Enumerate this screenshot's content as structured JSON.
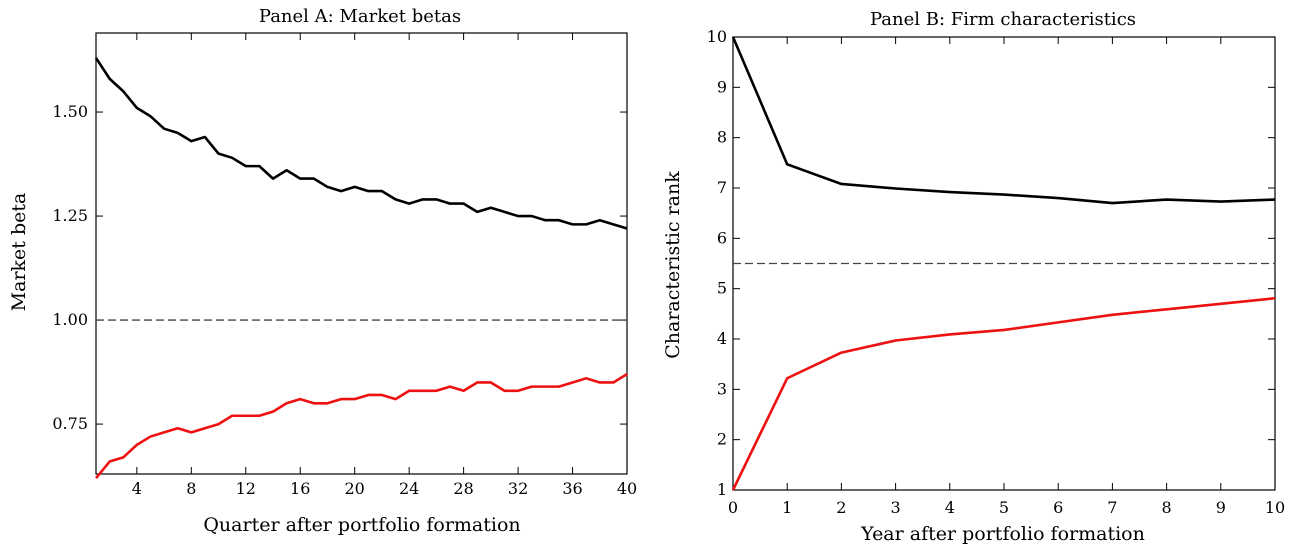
{
  "chart_data": [
    {
      "type": "line",
      "title": "Panel A: Market betas",
      "xlabel": "Quarter after portfolio formation",
      "ylabel": "Market beta",
      "xlim": [
        1,
        40
      ],
      "ylim": [
        0.63,
        1.69
      ],
      "x_ticks": [
        4,
        8,
        12,
        16,
        20,
        24,
        28,
        32,
        36,
        40
      ],
      "x_tick_labels": [
        "4",
        "8",
        "12",
        "16",
        "20",
        "24",
        "28",
        "32",
        "36",
        "40"
      ],
      "y_ticks": [
        0.75,
        1.0,
        1.25,
        1.5
      ],
      "y_tick_labels": [
        "0.75",
        "1.00",
        "1.25",
        "1.50"
      ],
      "grid": false,
      "reference_line": {
        "y": 1.0,
        "color": "#444444",
        "style": "dashed"
      },
      "series": [
        {
          "color": "#000000",
          "x": [
            1,
            2,
            3,
            4,
            5,
            6,
            7,
            8,
            9,
            10,
            11,
            12,
            13,
            14,
            15,
            16,
            17,
            18,
            19,
            20,
            21,
            22,
            23,
            24,
            25,
            26,
            27,
            28,
            29,
            30,
            31,
            32,
            33,
            34,
            35,
            36,
            37,
            38,
            39,
            40
          ],
          "values": [
            1.63,
            1.58,
            1.55,
            1.51,
            1.49,
            1.46,
            1.45,
            1.43,
            1.44,
            1.4,
            1.39,
            1.37,
            1.37,
            1.34,
            1.36,
            1.34,
            1.34,
            1.32,
            1.31,
            1.32,
            1.31,
            1.31,
            1.29,
            1.28,
            1.29,
            1.29,
            1.28,
            1.28,
            1.26,
            1.27,
            1.26,
            1.25,
            1.25,
            1.24,
            1.24,
            1.23,
            1.23,
            1.24,
            1.23,
            1.22
          ]
        },
        {
          "color": "#ee1111",
          "x": [
            1,
            2,
            3,
            4,
            5,
            6,
            7,
            8,
            9,
            10,
            11,
            12,
            13,
            14,
            15,
            16,
            17,
            18,
            19,
            20,
            21,
            22,
            23,
            24,
            25,
            26,
            27,
            28,
            29,
            30,
            31,
            32,
            33,
            34,
            35,
            36,
            37,
            38,
            39,
            40
          ],
          "values": [
            0.62,
            0.66,
            0.67,
            0.7,
            0.72,
            0.73,
            0.74,
            0.73,
            0.74,
            0.75,
            0.77,
            0.77,
            0.77,
            0.78,
            0.8,
            0.81,
            0.8,
            0.8,
            0.81,
            0.81,
            0.82,
            0.82,
            0.81,
            0.83,
            0.83,
            0.83,
            0.84,
            0.83,
            0.85,
            0.85,
            0.83,
            0.83,
            0.84,
            0.84,
            0.84,
            0.85,
            0.86,
            0.85,
            0.85,
            0.87
          ]
        }
      ]
    },
    {
      "type": "line",
      "title": "Panel B: Firm characteristics",
      "xlabel": "Year after portfolio formation",
      "ylabel": "Characteristic rank",
      "xlim": [
        0,
        10
      ],
      "ylim": [
        1,
        10
      ],
      "x_ticks": [
        0,
        1,
        2,
        3,
        4,
        5,
        6,
        7,
        8,
        9,
        10
      ],
      "x_tick_labels": [
        "0",
        "1",
        "2",
        "3",
        "4",
        "5",
        "6",
        "7",
        "8",
        "9",
        "10"
      ],
      "y_ticks": [
        1,
        2,
        3,
        4,
        5,
        6,
        7,
        8,
        9,
        10
      ],
      "y_tick_labels": [
        "1",
        "2",
        "3",
        "4",
        "5",
        "6",
        "7",
        "8",
        "9",
        "10"
      ],
      "grid": false,
      "reference_line": {
        "y": 5.5,
        "color": "#444444",
        "style": "dashed"
      },
      "series": [
        {
          "color": "#000000",
          "x": [
            0,
            1,
            2,
            3,
            4,
            5,
            6,
            7,
            8,
            9,
            10
          ],
          "values": [
            10.0,
            7.47,
            7.08,
            6.99,
            6.92,
            6.87,
            6.8,
            6.7,
            6.77,
            6.73,
            6.77
          ]
        },
        {
          "color": "#ee1111",
          "x": [
            0,
            1,
            2,
            3,
            4,
            5,
            6,
            7,
            8,
            9,
            10
          ],
          "values": [
            1.0,
            3.22,
            3.73,
            3.97,
            4.09,
            4.18,
            4.33,
            4.48,
            4.59,
            4.7,
            4.81
          ]
        }
      ]
    }
  ]
}
